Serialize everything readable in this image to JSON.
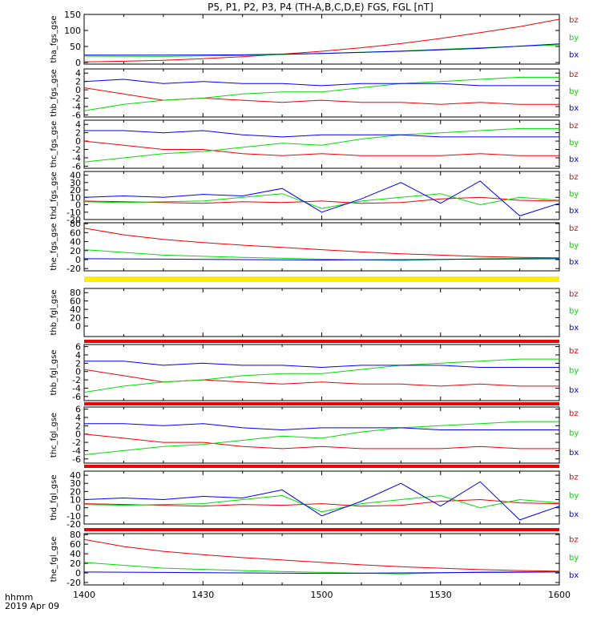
{
  "chart_data": {
    "type": "line",
    "title": "P5, P1, P2, P3, P4 (TH-A,B,C,D,E) FGS, FGL [nT]",
    "x_unit_label": "hhmm",
    "x_date_label": "2019 Apr 09",
    "x_tick_labels": [
      "1400",
      "1430",
      "1500",
      "1530",
      "1600"
    ],
    "legend": [
      "bz",
      "by",
      "bx"
    ],
    "colors": {
      "bx": "#0000ee",
      "by": "#00dd00",
      "bz": "#ee0000"
    },
    "panels": [
      {
        "ylabel": "tha_fgs_gse",
        "yticks": [
          "0",
          "50",
          "100",
          "150"
        ],
        "ylim": [
          -5,
          150
        ],
        "series": [
          {
            "name": "bz",
            "x": [
              0,
              10,
              20,
              30,
              40,
              50,
              60,
              70,
              80,
              90,
              100,
              110,
              120
            ],
            "values": [
              2,
              4,
              7,
              12,
              18,
              26,
              35,
              46,
              59,
              75,
              93,
              112,
              135
            ]
          },
          {
            "name": "by",
            "x": [
              0,
              20,
              40,
              60,
              80,
              100,
              120
            ],
            "values": [
              20,
              19,
              22,
              28,
              36,
              46,
              55
            ]
          },
          {
            "name": "bx",
            "x": [
              0,
              20,
              40,
              60,
              80,
              100,
              120
            ],
            "values": [
              23,
              23,
              24,
              28,
              35,
              44,
              58
            ]
          }
        ]
      },
      {
        "ylabel": "thb_fgs_gse",
        "yticks": [
          "-6",
          "-4",
          "-2",
          "0",
          "2",
          "4"
        ],
        "ylim": [
          -6.5,
          5
        ],
        "series": [
          {
            "name": "bz",
            "x": [
              0,
              10,
              20,
              30,
              40,
              50,
              60,
              70,
              80,
              90,
              100,
              110,
              120
            ],
            "values": [
              0.5,
              -1,
              -2.5,
              -2,
              -2.5,
              -3,
              -2.5,
              -3,
              -3,
              -3.5,
              -3,
              -3.5,
              -3.5
            ]
          },
          {
            "name": "by",
            "x": [
              0,
              10,
              20,
              30,
              40,
              50,
              60,
              70,
              80,
              90,
              100,
              110,
              120
            ],
            "values": [
              -5,
              -3.5,
              -2.5,
              -2,
              -1,
              -0.5,
              -0.5,
              0.5,
              1.5,
              2,
              2.5,
              3,
              3
            ]
          },
          {
            "name": "bx",
            "x": [
              0,
              10,
              20,
              30,
              40,
              50,
              60,
              70,
              80,
              90,
              100,
              110,
              120
            ],
            "values": [
              2,
              2.5,
              1.5,
              2,
              1.5,
              1.5,
              1,
              1.5,
              1.5,
              1.5,
              1,
              1,
              1
            ]
          }
        ]
      },
      {
        "ylabel": "thc_fgs_gse",
        "yticks": [
          "-6",
          "-4",
          "-2",
          "0",
          "2",
          "4"
        ],
        "ylim": [
          -6.5,
          5
        ],
        "series": [
          {
            "name": "bz",
            "x": [
              0,
              10,
              20,
              30,
              40,
              50,
              60,
              70,
              80,
              90,
              100,
              110,
              120
            ],
            "values": [
              0,
              -1,
              -2,
              -2,
              -3,
              -3.5,
              -3,
              -3.5,
              -3.5,
              -3.5,
              -3,
              -3.5,
              -3.5
            ]
          },
          {
            "name": "by",
            "x": [
              0,
              10,
              20,
              30,
              40,
              50,
              60,
              70,
              80,
              90,
              100,
              110,
              120
            ],
            "values": [
              -5,
              -4,
              -3,
              -2.5,
              -1.5,
              -0.5,
              -1,
              0.5,
              1.5,
              2,
              2.5,
              3,
              3
            ]
          },
          {
            "name": "bx",
            "x": [
              0,
              10,
              20,
              30,
              40,
              50,
              60,
              70,
              80,
              90,
              100,
              110,
              120
            ],
            "values": [
              2.5,
              2.5,
              2,
              2.5,
              1.5,
              1,
              1.5,
              1.5,
              1.5,
              1,
              1,
              1,
              1
            ]
          }
        ]
      },
      {
        "ylabel": "thd_fgs_gse",
        "yticks": [
          "-20",
          "-10",
          "0",
          "10",
          "20",
          "30",
          "40"
        ],
        "ylim": [
          -20,
          45
        ],
        "series": [
          {
            "name": "bz",
            "x": [
              0,
              10,
              20,
              30,
              40,
              50,
              60,
              70,
              80,
              90,
              100,
              110,
              120
            ],
            "values": [
              5,
              4,
              3,
              2,
              4,
              3,
              5,
              2,
              3,
              8,
              10,
              6,
              5
            ]
          },
          {
            "name": "by",
            "x": [
              0,
              10,
              20,
              30,
              40,
              50,
              60,
              70,
              80,
              90,
              100,
              110,
              120
            ],
            "values": [
              4,
              3,
              4,
              5,
              10,
              15,
              -5,
              5,
              10,
              15,
              0,
              10,
              6
            ]
          },
          {
            "name": "bx",
            "x": [
              0,
              10,
              20,
              30,
              40,
              50,
              60,
              70,
              80,
              90,
              100,
              110,
              120
            ],
            "values": [
              10,
              12,
              10,
              14,
              12,
              22,
              -10,
              8,
              30,
              2,
              32,
              -15,
              2
            ]
          }
        ]
      },
      {
        "ylabel": "the_fgs_gse",
        "yticks": [
          "-20",
          "0",
          "20",
          "40",
          "60",
          "80"
        ],
        "ylim": [
          -25,
          82
        ],
        "series": [
          {
            "name": "bz",
            "x": [
              0,
              10,
              20,
              30,
              40,
              50,
              60,
              70,
              80,
              90,
              100,
              110,
              120
            ],
            "values": [
              70,
              55,
              45,
              38,
              32,
              27,
              22,
              17,
              13,
              10,
              7,
              5,
              4
            ]
          },
          {
            "name": "by",
            "x": [
              0,
              20,
              40,
              60,
              80,
              100,
              120
            ],
            "values": [
              22,
              10,
              5,
              1,
              -2,
              2,
              3
            ]
          },
          {
            "name": "bx",
            "x": [
              0,
              20,
              40,
              60,
              80,
              100,
              120
            ],
            "values": [
              2,
              1,
              0,
              -1,
              0,
              1,
              2
            ]
          }
        ]
      },
      {
        "ylabel": "thb_fgl_gse",
        "yticks": [
          "0",
          "20",
          "40",
          "60",
          "80"
        ],
        "ylim": [
          -25,
          90
        ],
        "series": []
      },
      {
        "ylabel": "thb_fgl_gse",
        "yticks": [
          "-6",
          "-4",
          "-2",
          "0",
          "2",
          "4",
          "6"
        ],
        "ylim": [
          -7,
          6.5
        ],
        "series": [
          {
            "name": "bz",
            "x": [
              0,
              10,
              20,
              30,
              40,
              50,
              60,
              70,
              80,
              90,
              100,
              110,
              120
            ],
            "values": [
              0.5,
              -1,
              -2.5,
              -2,
              -2.5,
              -3,
              -2.5,
              -3,
              -3,
              -3.5,
              -3,
              -3.5,
              -3.5
            ]
          },
          {
            "name": "by",
            "x": [
              0,
              10,
              20,
              30,
              40,
              50,
              60,
              70,
              80,
              90,
              100,
              110,
              120
            ],
            "values": [
              -5,
              -3.5,
              -2.5,
              -2,
              -1,
              -0.5,
              -0.5,
              0.5,
              1.5,
              2,
              2.5,
              3,
              3
            ]
          },
          {
            "name": "bx",
            "x": [
              0,
              10,
              20,
              30,
              40,
              50,
              60,
              70,
              80,
              90,
              100,
              110,
              120
            ],
            "values": [
              2.5,
              2.5,
              1.5,
              2,
              1.5,
              1.5,
              1,
              1.5,
              1.5,
              1.5,
              1,
              1,
              1
            ]
          }
        ]
      },
      {
        "ylabel": "thc_fgl_gse",
        "yticks": [
          "-6",
          "-4",
          "-2",
          "0",
          "2",
          "4",
          "6"
        ],
        "ylim": [
          -7,
          6.5
        ],
        "series": [
          {
            "name": "bz",
            "x": [
              0,
              10,
              20,
              30,
              40,
              50,
              60,
              70,
              80,
              90,
              100,
              110,
              120
            ],
            "values": [
              0,
              -1,
              -2,
              -2,
              -3,
              -3.5,
              -3,
              -3.5,
              -3.5,
              -3.5,
              -3,
              -3.5,
              -3.5
            ]
          },
          {
            "name": "by",
            "x": [
              0,
              10,
              20,
              30,
              40,
              50,
              60,
              70,
              80,
              90,
              100,
              110,
              120
            ],
            "values": [
              -5,
              -4,
              -3,
              -2.5,
              -1.5,
              -0.5,
              -1,
              0.5,
              1.5,
              2,
              2.5,
              3,
              3
            ]
          },
          {
            "name": "bx",
            "x": [
              0,
              10,
              20,
              30,
              40,
              50,
              60,
              70,
              80,
              90,
              100,
              110,
              120
            ],
            "values": [
              2.5,
              2.5,
              2,
              2.5,
              1.5,
              1,
              1.5,
              1.5,
              1.5,
              1,
              1,
              1,
              1
            ]
          }
        ]
      },
      {
        "ylabel": "thd_fgl_gse",
        "yticks": [
          "-20",
          "-10",
          "0",
          "10",
          "20",
          "30",
          "40"
        ],
        "ylim": [
          -20,
          45
        ],
        "series": [
          {
            "name": "bz",
            "x": [
              0,
              10,
              20,
              30,
              40,
              50,
              60,
              70,
              80,
              90,
              100,
              110,
              120
            ],
            "values": [
              5,
              4,
              3,
              2,
              4,
              3,
              5,
              2,
              3,
              8,
              10,
              6,
              5
            ]
          },
          {
            "name": "by",
            "x": [
              0,
              10,
              20,
              30,
              40,
              50,
              60,
              70,
              80,
              90,
              100,
              110,
              120
            ],
            "values": [
              4,
              3,
              4,
              5,
              10,
              15,
              -5,
              5,
              10,
              15,
              0,
              10,
              6
            ]
          },
          {
            "name": "bx",
            "x": [
              0,
              10,
              20,
              30,
              40,
              50,
              60,
              70,
              80,
              90,
              100,
              110,
              120
            ],
            "values": [
              10,
              12,
              10,
              14,
              12,
              22,
              -10,
              8,
              30,
              2,
              32,
              -15,
              2
            ]
          }
        ]
      },
      {
        "ylabel": "the_fgl_gse",
        "yticks": [
          "-20",
          "0",
          "20",
          "40",
          "60",
          "80"
        ],
        "ylim": [
          -25,
          82
        ],
        "series": [
          {
            "name": "bz",
            "x": [
              0,
              10,
              20,
              30,
              40,
              50,
              60,
              70,
              80,
              90,
              100,
              110,
              120
            ],
            "values": [
              70,
              55,
              45,
              38,
              32,
              27,
              22,
              17,
              13,
              10,
              7,
              5,
              4
            ]
          },
          {
            "name": "by",
            "x": [
              0,
              20,
              40,
              60,
              80,
              100,
              120
            ],
            "values": [
              22,
              10,
              5,
              1,
              -2,
              2,
              3
            ]
          },
          {
            "name": "bx",
            "x": [
              0,
              20,
              40,
              60,
              80,
              100,
              120
            ],
            "values": [
              2,
              1,
              0,
              -1,
              0,
              1,
              2
            ]
          }
        ]
      }
    ]
  }
}
